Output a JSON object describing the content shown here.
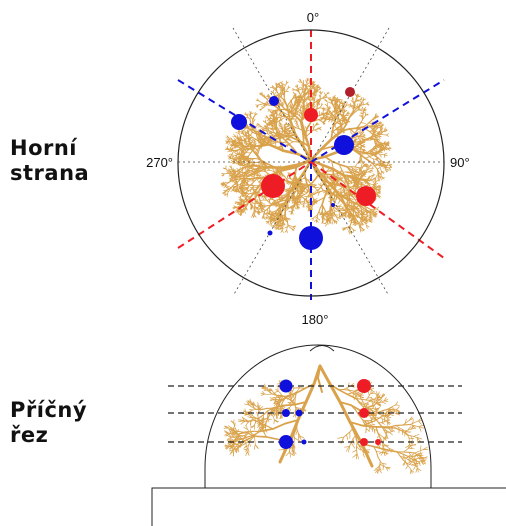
{
  "labels": {
    "top_view_line1": "Horní",
    "top_view_line2": "strana",
    "cross_section_line1": "Příčný",
    "cross_section_line2": "řez"
  },
  "angles": {
    "top": "0°",
    "right": "90°",
    "bottom": "180°",
    "left": "270°"
  },
  "colors": {
    "dendrite": "#d9a24b",
    "red": "#ee1c25",
    "blue": "#1010dd",
    "dark_red": "#b0202a",
    "outline": "#222222"
  }
}
